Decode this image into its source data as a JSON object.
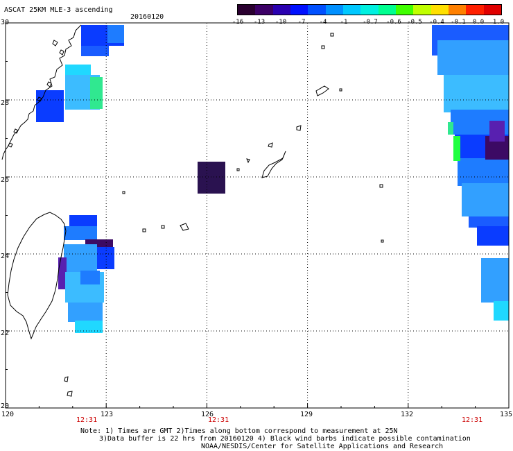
{
  "header": {
    "title": "ASCAT 25KM MLE-3 ascending",
    "date": "20160120"
  },
  "colorbar": {
    "labels": [
      "-16",
      "-13",
      "-10",
      "-7",
      "-4",
      "-1",
      "-0.7",
      "-0.6",
      "-0.5",
      "-0.4",
      "-0.1",
      "0.0",
      "1.0"
    ],
    "colors": [
      "#2a0030",
      "#3c0066",
      "#2a00b0",
      "#0010ff",
      "#0050ff",
      "#0090ff",
      "#00c8ff",
      "#00f0e0",
      "#00ff90",
      "#40ff00",
      "#c0ff00",
      "#ffe000",
      "#ff8000",
      "#ff2000",
      "#e00000"
    ]
  },
  "map": {
    "lat_labels": [
      "30",
      "28",
      "26",
      "24",
      "22",
      "20"
    ],
    "lon_labels": [
      "120",
      "123",
      "126",
      "129",
      "132",
      "135"
    ],
    "time_labels": [
      "12:31",
      "12:31",
      "12:31"
    ],
    "cell_colors": {
      "blue": "#0a3cff",
      "blue2": "#1a5cff",
      "mid": "#1e7cff",
      "sky": "#32a0ff",
      "light": "#3cbcff",
      "cyan": "#20d8ff",
      "green": "#30e890",
      "lime": "#20ff40",
      "purple": "#3c0a64",
      "dark": "#2a1250",
      "violet": "#5820b0"
    }
  },
  "notes": {
    "line1": "Note: 1) Times are GMT 2)Times along bottom correspond to measurement at 25N",
    "line2": "3)Data buffer is 22 hrs from 20160120 4) Black wind barbs indicate possible contamination",
    "line3": "NOAA/NESDIS/Center for Satellite Applications and Research"
  }
}
